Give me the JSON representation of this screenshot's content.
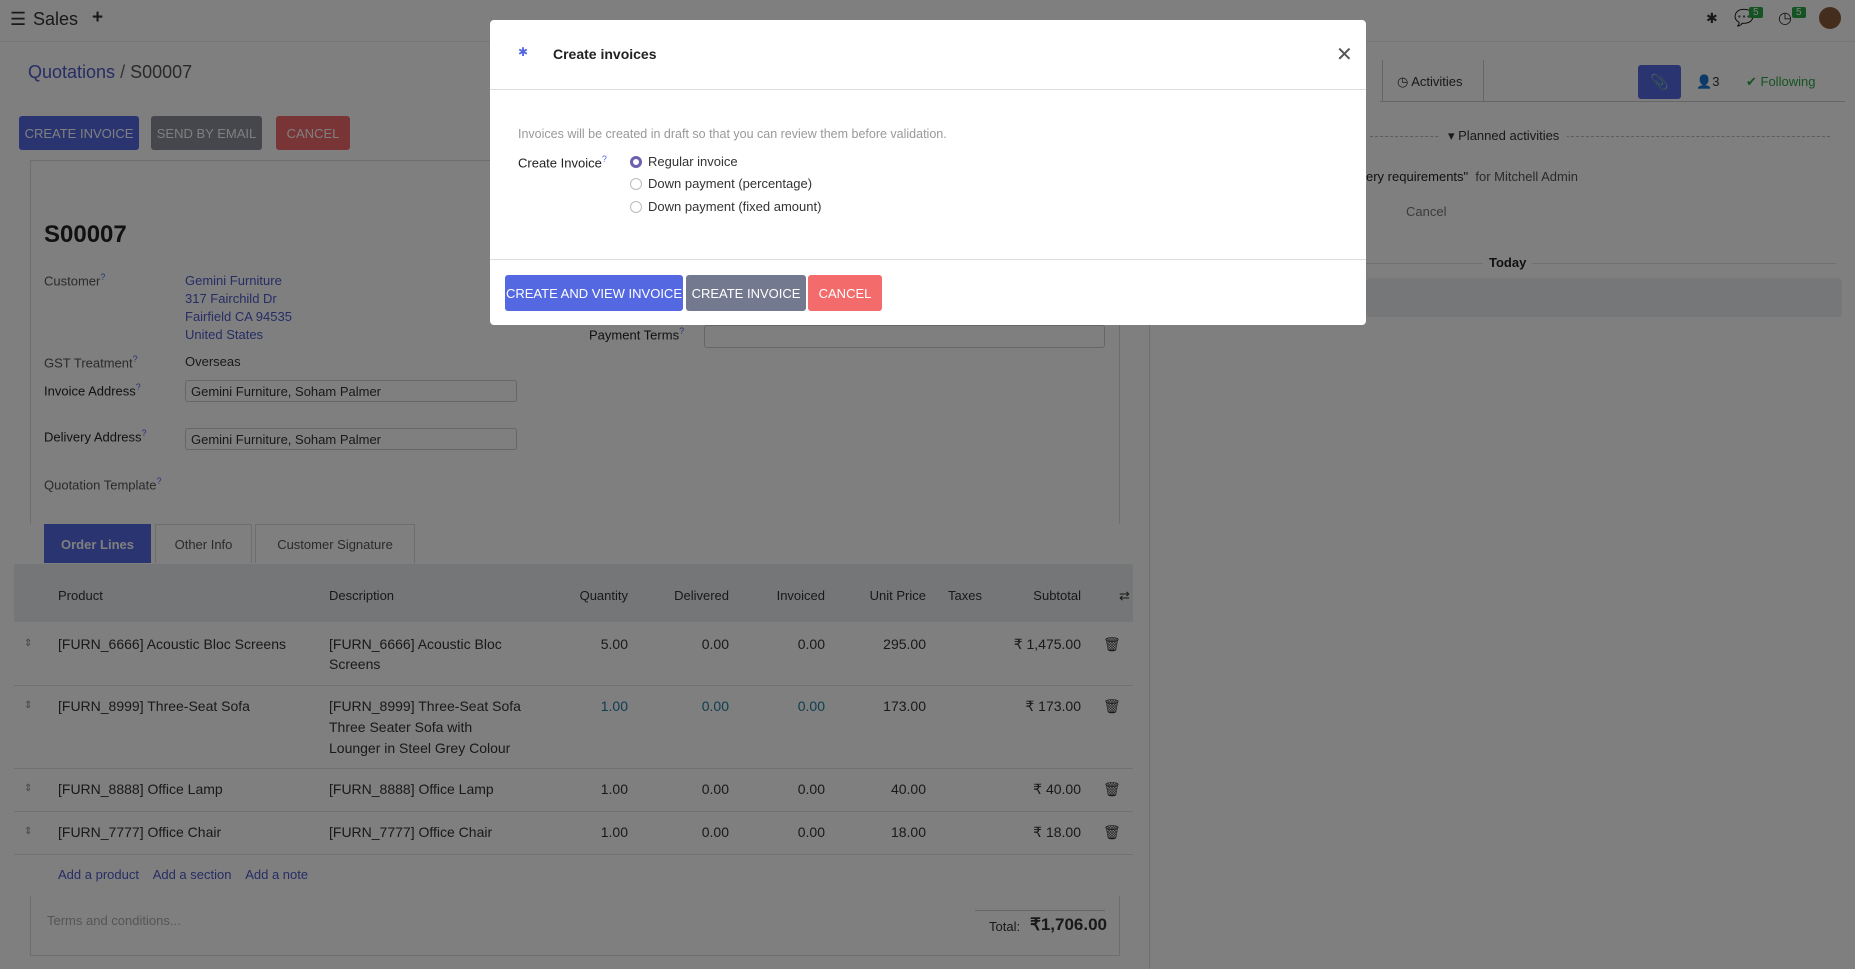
{
  "topbar": {
    "app_name": "Sales",
    "notifications": {
      "messages": "5",
      "activities": "5"
    }
  },
  "breadcrumb": {
    "parent": "Quotations",
    "current": "S00007"
  },
  "actions": {
    "create_invoice": "CREATE INVOICE",
    "send_by_email": "SEND BY EMAIL",
    "cancel": "CANCEL"
  },
  "form": {
    "title": "S00007",
    "customer_label": "Customer",
    "customer_lines": [
      "Gemini Furniture",
      "317 Fairchild Dr",
      "Fairfield CA 94535",
      "United States"
    ],
    "gst_label": "GST Treatment",
    "gst_value": "Overseas",
    "invoice_address_label": "Invoice Address",
    "invoice_address_value": "Gemini Furniture, Soham Palmer",
    "delivery_address_label": "Delivery Address",
    "delivery_address_value": "Gemini Furniture, Soham Palmer",
    "quotation_template_label": "Quotation Template",
    "payment_terms_label": "Payment Terms",
    "help_mark": "?"
  },
  "tabs": [
    "Order Lines",
    "Other Info",
    "Customer Signature"
  ],
  "table": {
    "headers": [
      "Product",
      "Description",
      "Quantity",
      "Delivered",
      "Invoiced",
      "Unit Price",
      "Taxes",
      "Subtotal"
    ],
    "rows": [
      {
        "product": "[FURN_6666] Acoustic Bloc Screens",
        "description": [
          "[FURN_6666] Acoustic Bloc",
          "Screens"
        ],
        "quantity": "5.00",
        "delivered": "0.00",
        "invoiced": "0.00",
        "unit_price": "295.00",
        "taxes": "",
        "subtotal": "₹ 1,475.00"
      },
      {
        "product": "[FURN_8999] Three-Seat Sofa",
        "description": [
          "[FURN_8999] Three-Seat Sofa",
          "Three Seater Sofa with",
          "Lounger in Steel Grey Colour"
        ],
        "quantity": "1.00",
        "delivered": "0.00",
        "invoiced": "0.00",
        "unit_price": "173.00",
        "taxes": "",
        "subtotal": "₹ 173.00"
      },
      {
        "product": "[FURN_8888] Office Lamp",
        "description": [
          "[FURN_8888] Office Lamp"
        ],
        "quantity": "1.00",
        "delivered": "0.00",
        "invoiced": "0.00",
        "unit_price": "40.00",
        "taxes": "",
        "subtotal": "₹ 40.00"
      },
      {
        "product": "[FURN_7777] Office Chair",
        "description": [
          "[FURN_7777] Office Chair"
        ],
        "quantity": "1.00",
        "delivered": "0.00",
        "invoiced": "0.00",
        "unit_price": "18.00",
        "taxes": "",
        "subtotal": "₹ 18.00"
      }
    ],
    "add_product": "Add a product",
    "add_section": "Add a section",
    "add_note": "Add a note"
  },
  "footer": {
    "terms_placeholder": "Terms and conditions...",
    "total_label": "Total:",
    "total_value": "₹1,706.00"
  },
  "chatter": {
    "activities": "Activities",
    "followers_count": "3",
    "following": "Following",
    "planned_activities": "Planned activities",
    "activity_text": "ery requirements\"",
    "activity_for": "for Mitchell Admin",
    "cancel": "Cancel",
    "today": "Today"
  },
  "modal": {
    "title": "Create invoices",
    "info": "Invoices will be created in draft so that you can review them before validation.",
    "field_label": "Create Invoice",
    "options": [
      {
        "label": "Regular invoice",
        "selected": true
      },
      {
        "label": "Down payment (percentage)",
        "selected": false
      },
      {
        "label": "Down payment (fixed amount)",
        "selected": false
      }
    ],
    "buttons": {
      "create_and_view": "CREATE AND VIEW INVOICE",
      "create": "CREATE INVOICE",
      "cancel": "CANCEL"
    }
  },
  "colors": {
    "primary": "#5468e2",
    "secondary": "#737a8f",
    "danger": "#f36b6b",
    "success": "#28a745",
    "link": "#4c5bc8"
  }
}
